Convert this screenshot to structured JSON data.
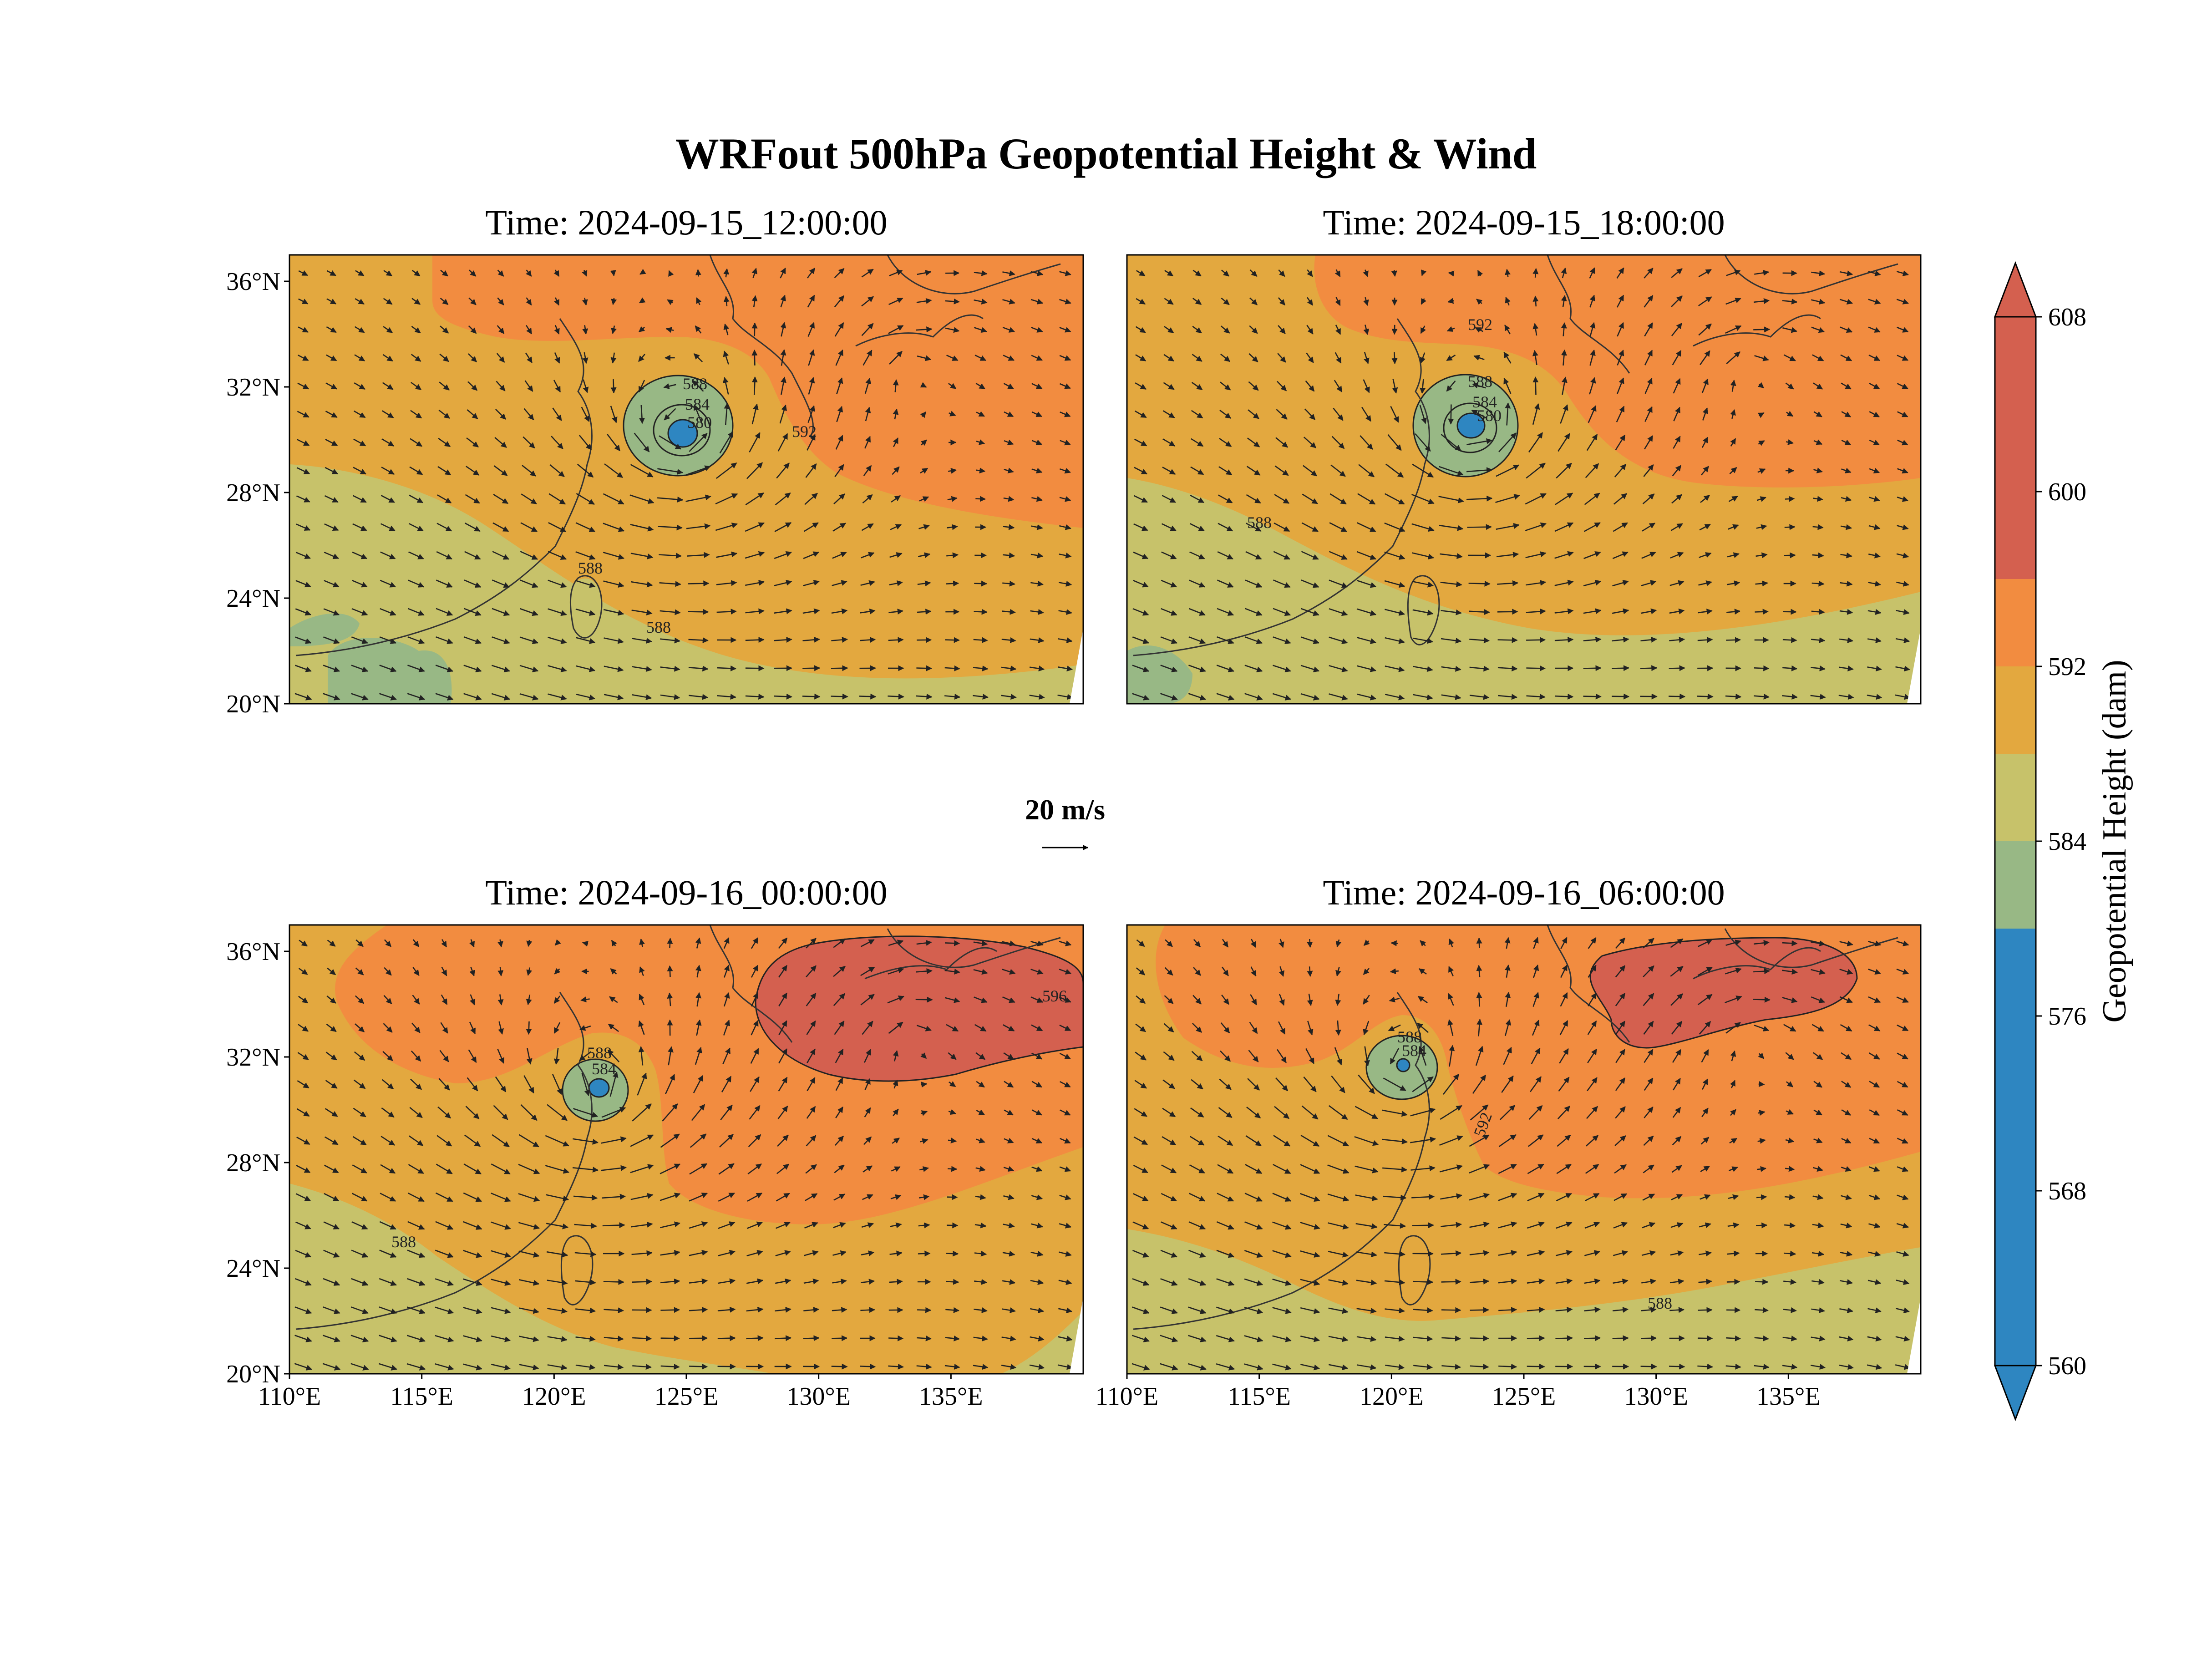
{
  "figure": {
    "title": "WRFout 500hPa Geopotential Height & Wind",
    "colorbar_label": "Geopotential Height (dam)",
    "colorbar_ticks": [
      "608",
      "600",
      "592",
      "584",
      "576",
      "568",
      "560"
    ],
    "reference_vector_label": "20 m/s",
    "lat_ticks": [
      "36°N",
      "32°N",
      "28°N",
      "24°N",
      "20°N"
    ],
    "lon_ticks": [
      "110°E",
      "115°E",
      "120°E",
      "125°E",
      "130°E",
      "135°E"
    ]
  },
  "colors": {
    "lvl_560_580": "#2e86c1",
    "lvl_580_584": "#98b885",
    "lvl_584_588": "#c7c26a",
    "lvl_588_592": "#e3a83f",
    "lvl_592_596": "#f28c40",
    "lvl_596_608": "#d4604f"
  },
  "panels": [
    {
      "time_label": "Time: 2024-09-15_12:00:00",
      "low_center": {
        "lon": 124.8,
        "lat": 30.3
      },
      "contour_labels": [
        "588",
        "584",
        "580",
        "592",
        "588",
        "588"
      ],
      "has_600": false
    },
    {
      "time_label": "Time: 2024-09-15_18:00:00",
      "low_center": {
        "lon": 123.2,
        "lat": 30.5
      },
      "contour_labels": [
        "592",
        "588",
        "584",
        "580",
        "588"
      ],
      "has_600": false
    },
    {
      "time_label": "Time: 2024-09-16_00:00:00",
      "low_center": {
        "lon": 121.7,
        "lat": 30.9
      },
      "contour_labels": [
        "588",
        "584",
        "596",
        "588"
      ],
      "has_600": true
    },
    {
      "time_label": "Time: 2024-09-16_06:00:00",
      "low_center": {
        "lon": 120.6,
        "lat": 31.5
      },
      "contour_labels": [
        "588",
        "584",
        "592",
        "588"
      ],
      "has_600": true
    }
  ]
}
